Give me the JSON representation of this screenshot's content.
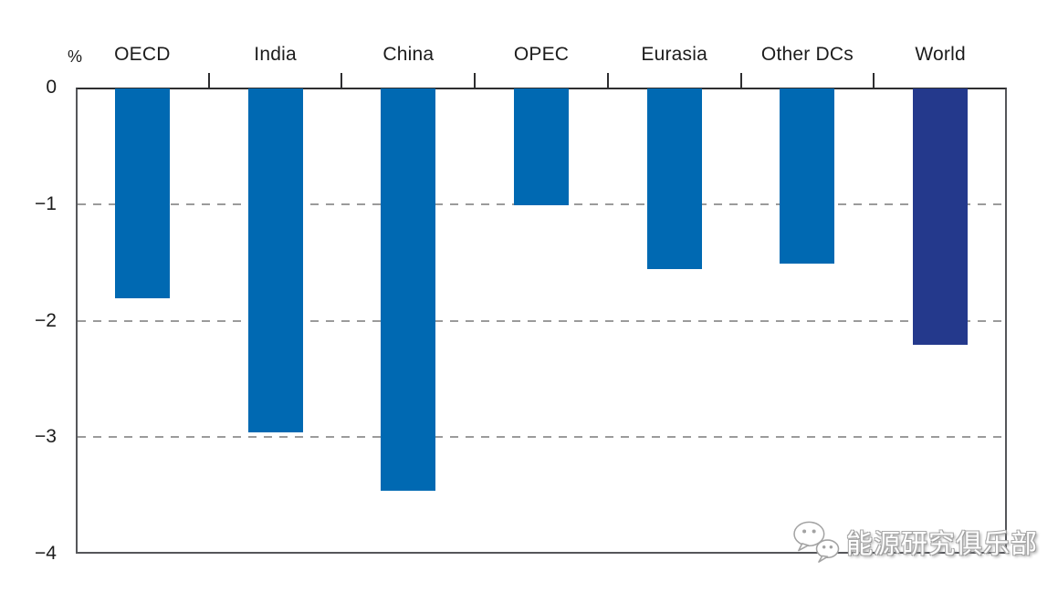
{
  "chart_data": {
    "type": "bar",
    "categories": [
      "OECD",
      "India",
      "China",
      "OPEC",
      "Eurasia",
      "Other DCs",
      "World"
    ],
    "values": [
      -1.8,
      -2.95,
      -3.45,
      -1.0,
      -1.55,
      -1.5,
      -2.2
    ],
    "unit_label": "%",
    "y_ticks": [
      "0",
      "−1",
      "−2",
      "−3",
      "−4"
    ],
    "y_tick_values": [
      0,
      -1,
      -2,
      -3,
      -4
    ],
    "gridline_values": [
      -1,
      -2,
      -3
    ],
    "ylim": [
      -4,
      0
    ],
    "bar_color": "#0069b2",
    "highlight_category": "World",
    "highlight_color": "#24398c",
    "axis_color": "#55565a",
    "grid_color": "#9b9b9b",
    "text_color": "#1c1c1c",
    "legend": "none",
    "grid": "horizontal dashed"
  },
  "watermark": {
    "text": "能源研究俱乐部",
    "icon": "wechat-icon"
  }
}
